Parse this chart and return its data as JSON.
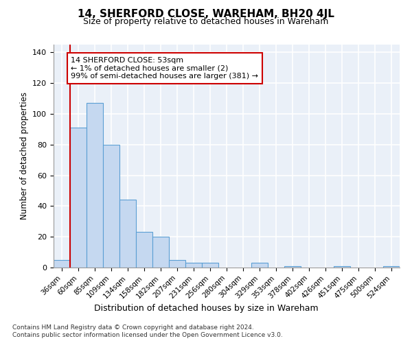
{
  "title": "14, SHERFORD CLOSE, WAREHAM, BH20 4JL",
  "subtitle": "Size of property relative to detached houses in Wareham",
  "xlabel": "Distribution of detached houses by size in Wareham",
  "ylabel": "Number of detached properties",
  "bar_labels": [
    "36sqm",
    "60sqm",
    "85sqm",
    "109sqm",
    "134sqm",
    "158sqm",
    "182sqm",
    "207sqm",
    "231sqm",
    "256sqm",
    "280sqm",
    "304sqm",
    "329sqm",
    "353sqm",
    "378sqm",
    "402sqm",
    "426sqm",
    "451sqm",
    "475sqm",
    "500sqm",
    "524sqm"
  ],
  "bar_values": [
    5,
    91,
    107,
    80,
    44,
    23,
    20,
    5,
    3,
    3,
    0,
    0,
    3,
    0,
    1,
    0,
    0,
    1,
    0,
    0,
    1
  ],
  "bar_color": "#c5d8f0",
  "bar_edge_color": "#5a9fd4",
  "annotation_box_text": "14 SHERFORD CLOSE: 53sqm\n← 1% of detached houses are smaller (2)\n99% of semi-detached houses are larger (381) →",
  "annotation_box_color": "#ffffff",
  "annotation_box_edge_color": "#cc0000",
  "vline_color": "#cc0000",
  "ylim": [
    0,
    145
  ],
  "yticks": [
    0,
    20,
    40,
    60,
    80,
    100,
    120,
    140
  ],
  "background_color": "#eaf0f8",
  "grid_color": "#ffffff",
  "footer_line1": "Contains HM Land Registry data © Crown copyright and database right 2024.",
  "footer_line2": "Contains public sector information licensed under the Open Government Licence v3.0."
}
